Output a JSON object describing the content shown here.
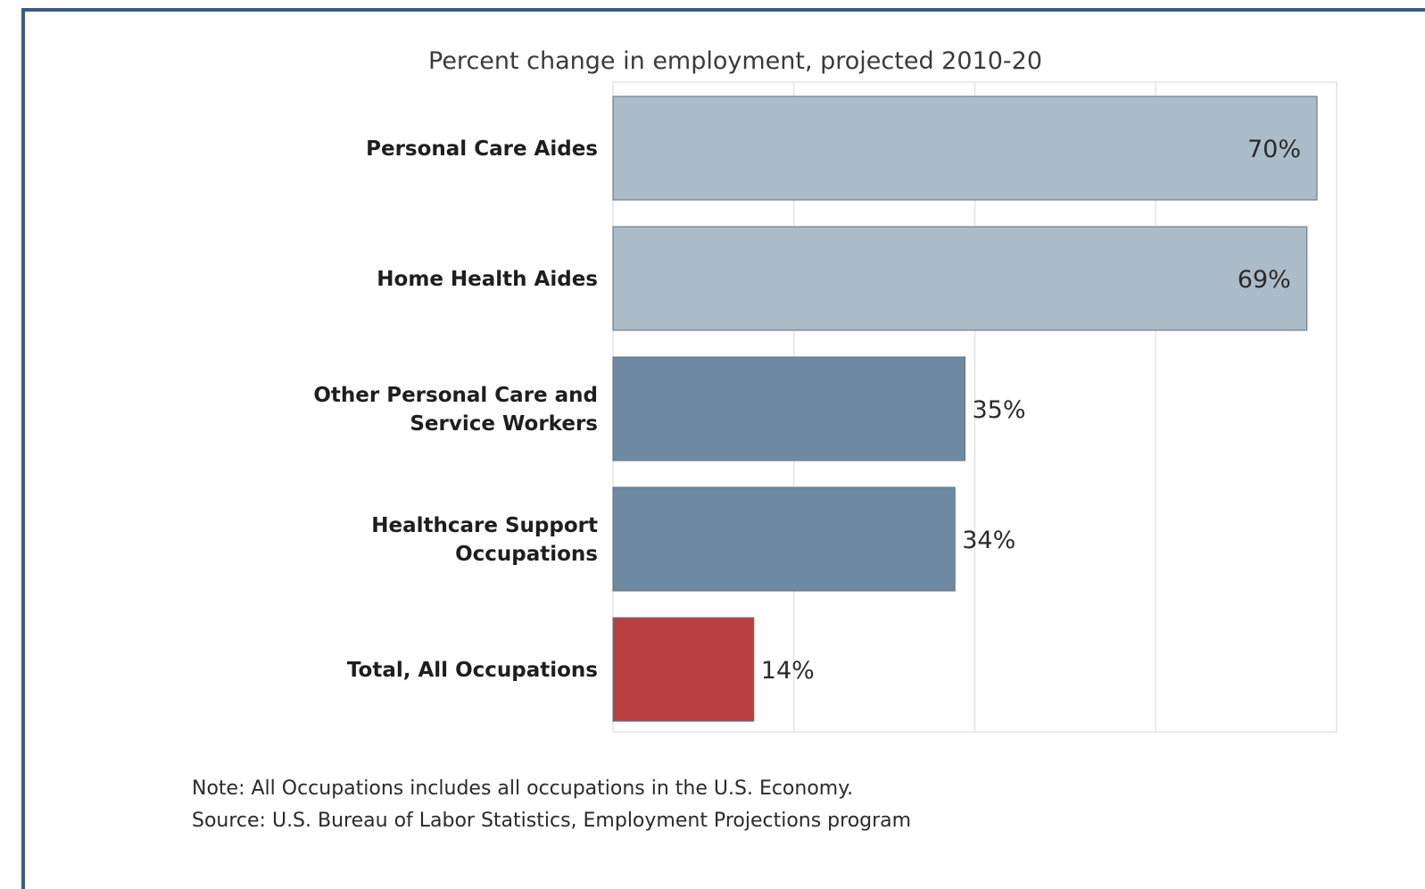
{
  "chart_data": {
    "type": "bar",
    "orientation": "horizontal",
    "title": "Percent change in employment, projected 2010-20",
    "categories": [
      "Personal Care Aides",
      "Home Health Aides",
      "Other Personal Care and Service Workers",
      "Healthcare Support Occupations",
      "Total, All Occupations"
    ],
    "category_lines": [
      [
        "Personal Care Aides"
      ],
      [
        "Home Health Aides"
      ],
      [
        "Other Personal Care and",
        "Service Workers"
      ],
      [
        "Healthcare Support",
        "Occupations"
      ],
      [
        "Total, All Occupations"
      ]
    ],
    "values": [
      70,
      69,
      35,
      34,
      14
    ],
    "value_labels": [
      "70%",
      "69%",
      "35%",
      "34%",
      "14%"
    ],
    "colors": [
      "#abbbc8",
      "#abbbc8",
      "#6e8aa3",
      "#6e8aa3",
      "#b84043"
    ],
    "xlim": [
      0,
      72
    ],
    "grid": true,
    "legend": "none"
  },
  "notes": {
    "note": "Note: All Occupations includes all occupations in the U.S. Economy.",
    "source": "Source: U.S. Bureau of Labor Statistics, Employment Projections program"
  }
}
